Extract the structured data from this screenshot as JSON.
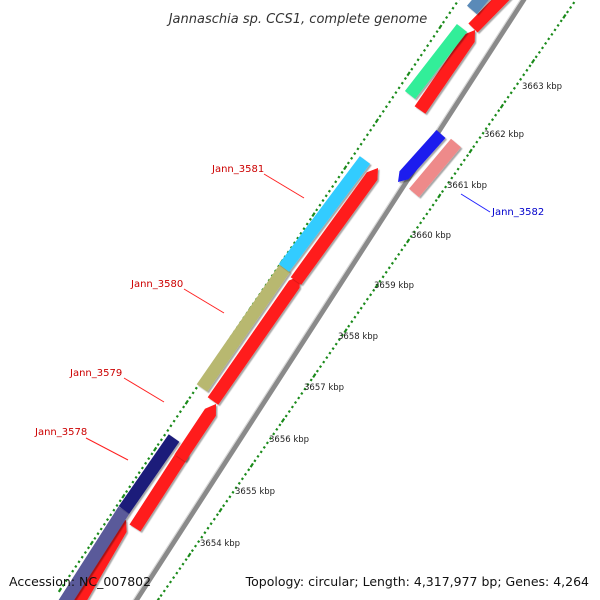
{
  "title": "Jannaschia sp. CCS1, complete genome",
  "accession_text": "Accession: NC_007802",
  "topology_text": "Topology: circular; Length: 4,317,977 bp; Genes: 4,264",
  "tick_labels": [
    "3654 kbp",
    "3655 kbp",
    "3656 kbp",
    "3657 kbp",
    "3658 kbp",
    "3659 kbp",
    "3660 kbp",
    "3661 kbp",
    "3662 kbp",
    "3663 kbp"
  ],
  "gene_labels": [
    {
      "name": "Jann_3578",
      "color": "#cc0000"
    },
    {
      "name": "Jann_3579",
      "color": "#cc0000"
    },
    {
      "name": "Jann_3580",
      "color": "#cc0000"
    },
    {
      "name": "Jann_3581",
      "color": "#cc0000"
    },
    {
      "name": "Jann_3582",
      "color": "#0000cc"
    }
  ],
  "colors": {
    "backbone": "#8a8a8a",
    "cds": "#ff1a1a",
    "tick_dots": "#1a8a1a",
    "navy": "#1a1a7a",
    "slate": "#5a5a9a",
    "olive": "#b8b870",
    "sky": "#33ccff",
    "green": "#33ee99",
    "steel": "#5a8ab8",
    "blue": "#1a1aee",
    "pink": "#ee8a8a"
  }
}
